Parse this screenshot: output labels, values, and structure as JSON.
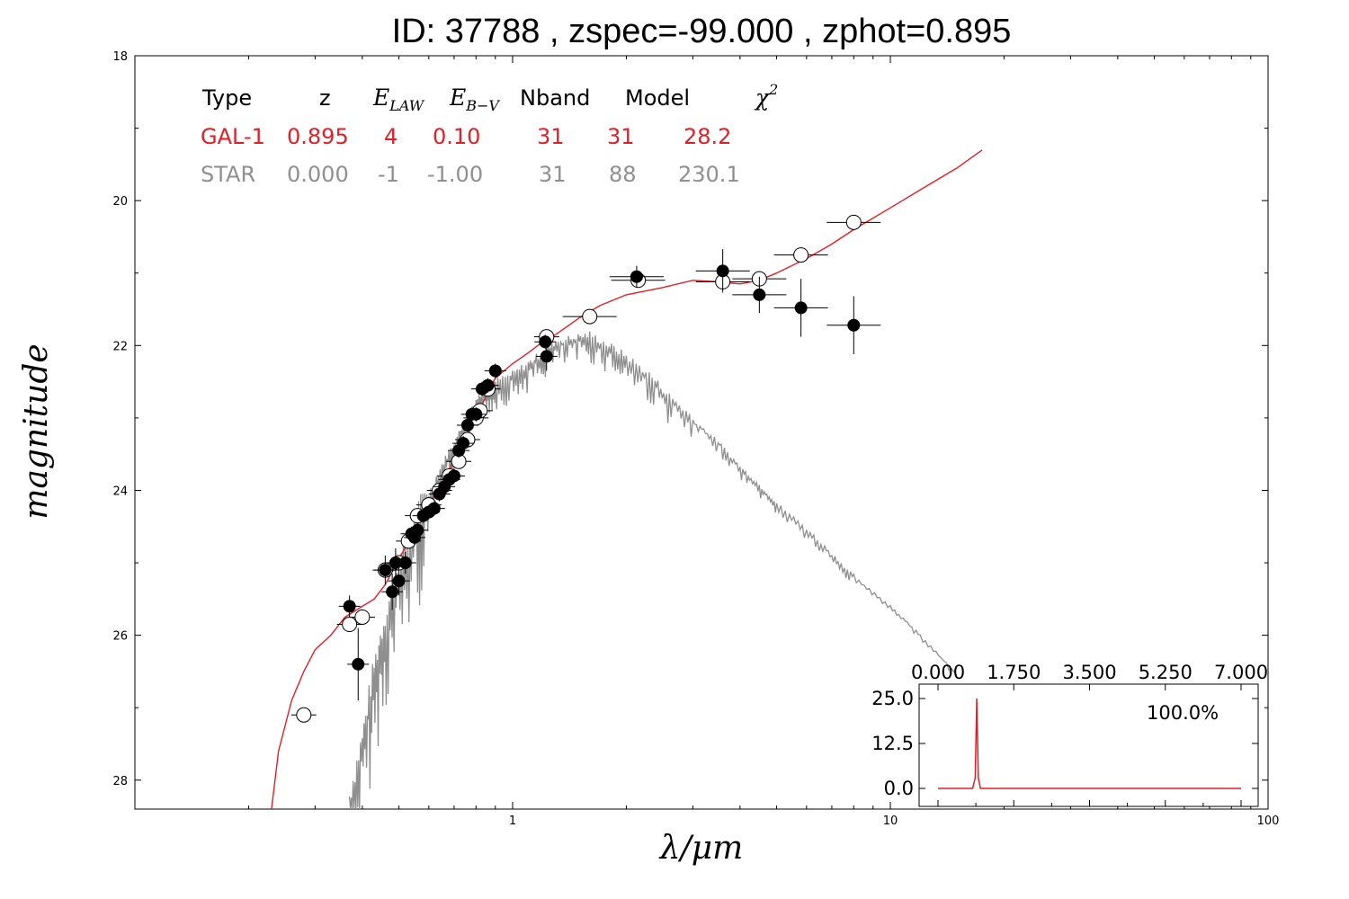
{
  "title": "ID:  37788 , zspec=-99.000 , zphot=0.895",
  "chart_data": {
    "type": "scatter",
    "xlabel": "λ/μm",
    "ylabel": "magnitude",
    "xscale": "log",
    "xlim": [
      0.1,
      100
    ],
    "ylim": [
      28.4,
      18
    ],
    "xticks": [
      "1",
      "10",
      "100"
    ],
    "yticks": [
      "18",
      "20",
      "22",
      "24",
      "26",
      "28"
    ],
    "table": {
      "header": [
        "Type",
        "z",
        "E_LAW",
        "E_B-V",
        "Nband",
        "Model",
        "χ²"
      ],
      "rows": [
        {
          "name": "GAL-1",
          "color": "#e21f26",
          "cells": [
            "GAL-1",
            "0.895",
            "4",
            "0.10",
            "31",
            "31",
            "28.2"
          ]
        },
        {
          "name": "STAR",
          "color": "#8f8f8f",
          "cells": [
            "STAR",
            "0.000",
            "-1",
            "-1.00",
            "31",
            "88",
            "230.1"
          ]
        }
      ]
    },
    "galaxy_sed": {
      "color": "#e21f26",
      "x": [
        0.23,
        0.24,
        0.26,
        0.28,
        0.3,
        0.33,
        0.36,
        0.4,
        0.43,
        0.46,
        0.5,
        0.55,
        0.6,
        0.65,
        0.7,
        0.75,
        0.8,
        0.85,
        0.9,
        1.0,
        1.1,
        1.2,
        1.3,
        1.5,
        1.7,
        2.0,
        2.5,
        3.0,
        3.5,
        4.0,
        4.5,
        5.0,
        6.0,
        7.0,
        8.0,
        10,
        12,
        15,
        17.5
      ],
      "y": [
        28.5,
        27.6,
        26.9,
        26.5,
        26.2,
        26.0,
        25.75,
        25.6,
        25.5,
        25.3,
        24.95,
        24.55,
        24.2,
        23.9,
        23.6,
        23.3,
        23.0,
        22.7,
        22.45,
        22.25,
        22.1,
        21.95,
        21.85,
        21.62,
        21.45,
        21.3,
        21.2,
        21.1,
        21.12,
        21.15,
        21.1,
        21.0,
        20.8,
        20.6,
        20.4,
        20.1,
        19.85,
        19.55,
        19.3
      ]
    },
    "star_sed": {
      "color": "#8f8f8f",
      "x": [
        0.37,
        0.4,
        0.43,
        0.46,
        0.5,
        0.55,
        0.6,
        0.65,
        0.7,
        0.75,
        0.8,
        0.85,
        0.9,
        1.0,
        1.1,
        1.2,
        1.3,
        1.45,
        1.6,
        1.8,
        2.0,
        2.3,
        2.6,
        3.0,
        3.5,
        4.0,
        4.5,
        5.0,
        6.0,
        7.0,
        8.0,
        10,
        12,
        15
      ],
      "y": [
        28.4,
        27.6,
        26.6,
        25.9,
        25.2,
        24.6,
        24.1,
        23.7,
        23.4,
        23.1,
        22.8,
        22.65,
        22.55,
        22.45,
        22.3,
        22.15,
        22.0,
        21.95,
        21.9,
        22.05,
        22.2,
        22.45,
        22.75,
        23.05,
        23.35,
        23.7,
        23.95,
        24.2,
        24.55,
        24.9,
        25.2,
        25.6,
        26.0,
        26.55
      ]
    },
    "model_points": {
      "label": "model magnitudes (open circles)",
      "x": [
        0.28,
        0.37,
        0.4,
        0.46,
        0.5,
        0.53,
        0.56,
        0.6,
        0.64,
        0.68,
        0.72,
        0.76,
        0.8,
        0.82,
        0.86,
        1.23,
        1.6,
        2.15,
        3.6,
        4.5,
        5.8,
        8.0
      ],
      "y": [
        27.1,
        25.85,
        25.75,
        25.1,
        25.0,
        24.7,
        24.35,
        24.2,
        24.0,
        23.8,
        23.6,
        23.3,
        23.0,
        22.9,
        22.6,
        21.88,
        21.6,
        21.1,
        21.12,
        21.08,
        20.75,
        20.3
      ]
    },
    "observed_points": {
      "label": "observed magnitudes (filled circles)",
      "x": [
        0.37,
        0.39,
        0.46,
        0.48,
        0.49,
        0.5,
        0.52,
        0.54,
        0.55,
        0.56,
        0.58,
        0.6,
        0.62,
        0.64,
        0.66,
        0.68,
        0.7,
        0.72,
        0.74,
        0.76,
        0.78,
        0.8,
        0.83,
        0.86,
        0.9,
        1.22,
        1.23,
        2.13,
        3.6,
        4.5,
        5.8,
        8.0
      ],
      "y": [
        25.6,
        26.4,
        25.1,
        25.4,
        25.0,
        25.25,
        25.0,
        24.6,
        24.65,
        24.55,
        24.35,
        24.3,
        24.25,
        24.05,
        23.95,
        23.85,
        23.8,
        23.45,
        23.35,
        23.1,
        22.95,
        22.95,
        22.6,
        22.55,
        22.35,
        21.95,
        22.15,
        21.05,
        20.97,
        21.3,
        21.48,
        21.72
      ],
      "yerr": [
        0.15,
        0.5,
        0.2,
        0.25,
        0.2,
        0.2,
        0.15,
        0.1,
        0.1,
        0.1,
        0.1,
        0.1,
        0.1,
        0.1,
        0.1,
        0.1,
        0.1,
        0.1,
        0.1,
        0.1,
        0.1,
        0.1,
        0.1,
        0.1,
        0.1,
        0.1,
        0.2,
        0.15,
        0.3,
        0.25,
        0.4,
        0.4
      ]
    },
    "inset": {
      "type": "line",
      "color": "#e21f26",
      "xlim": [
        0,
        7.0
      ],
      "ylim": [
        0,
        25.0
      ],
      "xticks": [
        "0.000",
        "1.750",
        "3.500",
        "5.250",
        "7.000"
      ],
      "yticks": [
        "25.0",
        "12.5",
        "0.0"
      ],
      "annotation": "100.0%",
      "x": [
        0.0,
        0.8,
        0.86,
        0.895,
        0.93,
        0.98,
        7.0
      ],
      "y": [
        0,
        0,
        3,
        25,
        3,
        0,
        0
      ]
    }
  }
}
